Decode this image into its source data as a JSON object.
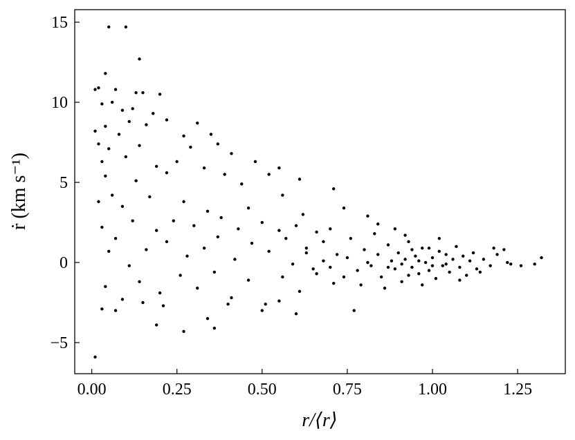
{
  "chart_data": {
    "type": "scatter",
    "x_label": "r/⟨r⟩",
    "y_label": "ṙ (km s⁻¹)",
    "color": "#000000",
    "xlim": [
      -0.05,
      1.39
    ],
    "ylim": [
      -6.94,
      15.78
    ],
    "xticks": [
      {
        "value": 0,
        "label": "0.00"
      },
      {
        "value": 0.25,
        "label": "0.25"
      },
      {
        "value": 0.5,
        "label": "0.50"
      },
      {
        "value": 0.75,
        "label": "0.75"
      },
      {
        "value": 1,
        "label": "1.00"
      },
      {
        "value": 1.25,
        "label": "1.25"
      }
    ],
    "yticks": [
      {
        "value": -5,
        "label": "−5"
      },
      0,
      5,
      10,
      15
    ],
    "x": [
      0.05,
      0.1,
      0.14,
      0.04,
      0.01,
      0.02,
      0.07,
      0.13,
      0.15,
      0.2,
      0.03,
      0.06,
      0.09,
      0.12,
      0.18,
      0.11,
      0.01,
      0.04,
      0.08,
      0.16,
      0.22,
      0.31,
      0.35,
      0.27,
      0.02,
      0.05,
      0.14,
      0.29,
      0.37,
      0.03,
      0.1,
      0.19,
      0.25,
      0.41,
      0.48,
      0.33,
      0.39,
      0.55,
      0.52,
      0.04,
      0.13,
      0.22,
      0.44,
      0.61,
      0.71,
      0.02,
      0.06,
      0.09,
      0.17,
      0.27,
      0.34,
      0.46,
      0.56,
      0.62,
      0.74,
      0.81,
      0.03,
      0.07,
      0.12,
      0.19,
      0.24,
      0.3,
      0.38,
      0.43,
      0.5,
      0.55,
      0.6,
      0.66,
      0.7,
      0.05,
      0.11,
      0.16,
      0.22,
      0.28,
      0.33,
      0.37,
      0.42,
      0.47,
      0.52,
      0.57,
      0.63,
      0.68,
      0.72,
      0.04,
      0.09,
      0.14,
      0.2,
      0.26,
      0.31,
      0.36,
      0.41,
      0.46,
      0.51,
      0.56,
      0.61,
      0.66,
      0.71,
      0.03,
      0.07,
      0.15,
      0.21,
      0.4,
      0.5,
      0.55,
      0.01,
      0.27,
      0.19,
      0.36,
      0.34,
      0.6,
      0.77,
      0.75,
      0.78,
      0.8,
      0.82,
      0.84,
      0.85,
      0.87,
      0.88,
      0.89,
      0.9,
      0.91,
      0.92,
      0.93,
      0.94,
      0.95,
      0.96,
      0.97,
      0.98,
      0.99,
      1.0,
      1.01,
      1.02,
      1.03,
      1.04,
      1.05,
      1.06,
      1.07,
      1.08,
      1.09,
      1.1,
      1.11,
      1.12,
      1.13,
      1.15,
      1.17,
      1.19,
      1.21,
      1.23,
      1.26,
      1.3,
      1.32,
      0.76,
      0.79,
      0.83,
      0.86,
      0.92,
      0.97,
      1.02,
      1.08,
      0.74,
      0.81,
      0.94,
      0.99,
      1.04,
      0.91,
      0.96,
      1.0,
      0.87,
      0.93,
      1.14,
      1.18,
      1.22,
      0.7,
      0.68,
      0.65,
      0.63,
      0.59,
      0.84,
      0.89
    ],
    "y": [
      14.7,
      14.7,
      12.7,
      11.8,
      10.8,
      10.9,
      10.8,
      10.6,
      10.6,
      10.5,
      9.9,
      10.0,
      9.5,
      9.6,
      9.3,
      8.8,
      8.2,
      8.5,
      8.0,
      8.6,
      8.9,
      8.7,
      8.0,
      7.9,
      7.4,
      7.1,
      7.3,
      7.2,
      7.4,
      6.3,
      6.6,
      6.0,
      6.3,
      6.8,
      6.3,
      5.9,
      5.5,
      5.9,
      5.5,
      5.4,
      5.1,
      5.6,
      4.9,
      5.2,
      4.6,
      3.8,
      4.2,
      3.5,
      4.1,
      3.8,
      3.2,
      3.4,
      4.2,
      3.0,
      3.4,
      2.9,
      2.2,
      1.5,
      2.6,
      2.0,
      2.6,
      2.3,
      2.8,
      2.1,
      2.5,
      2.0,
      2.3,
      1.9,
      2.1,
      0.7,
      -0.2,
      0.8,
      1.3,
      0.4,
      0.9,
      1.6,
      0.2,
      1.2,
      0.7,
      1.5,
      0.9,
      1.3,
      0.5,
      -1.5,
      -2.3,
      -1.2,
      -1.9,
      -0.8,
      -1.6,
      -0.6,
      -2.2,
      -1.1,
      -2.6,
      -0.9,
      -1.8,
      -0.7,
      -1.3,
      -2.9,
      -3.0,
      -2.5,
      -2.7,
      -2.6,
      -3.0,
      -2.4,
      -5.9,
      -4.3,
      -3.9,
      -4.1,
      -3.5,
      -3.2,
      -3.0,
      0.3,
      -0.5,
      0.8,
      -0.2,
      0.5,
      -0.9,
      1.1,
      0.1,
      -0.4,
      0.6,
      -1.2,
      0.2,
      1.3,
      -0.3,
      0.4,
      -0.7,
      0.9,
      0.0,
      -0.5,
      0.3,
      -1.0,
      0.7,
      -0.2,
      0.5,
      -0.6,
      0.2,
      1.0,
      -0.3,
      0.4,
      -0.8,
      0.1,
      0.6,
      -0.4,
      0.2,
      -0.2,
      0.5,
      0.8,
      -0.1,
      -0.2,
      -0.1,
      0.3,
      1.5,
      -1.4,
      1.8,
      -1.6,
      1.7,
      -1.4,
      1.5,
      -1.1,
      -0.9,
      0.0,
      0.8,
      0.9,
      -0.1,
      -0.1,
      0.1,
      -0.2,
      -0.3,
      -0.8,
      -0.6,
      0.9,
      0.0,
      -0.3,
      0.1,
      -0.4,
      0.6,
      -0.1,
      2.4,
      2.1
    ]
  }
}
